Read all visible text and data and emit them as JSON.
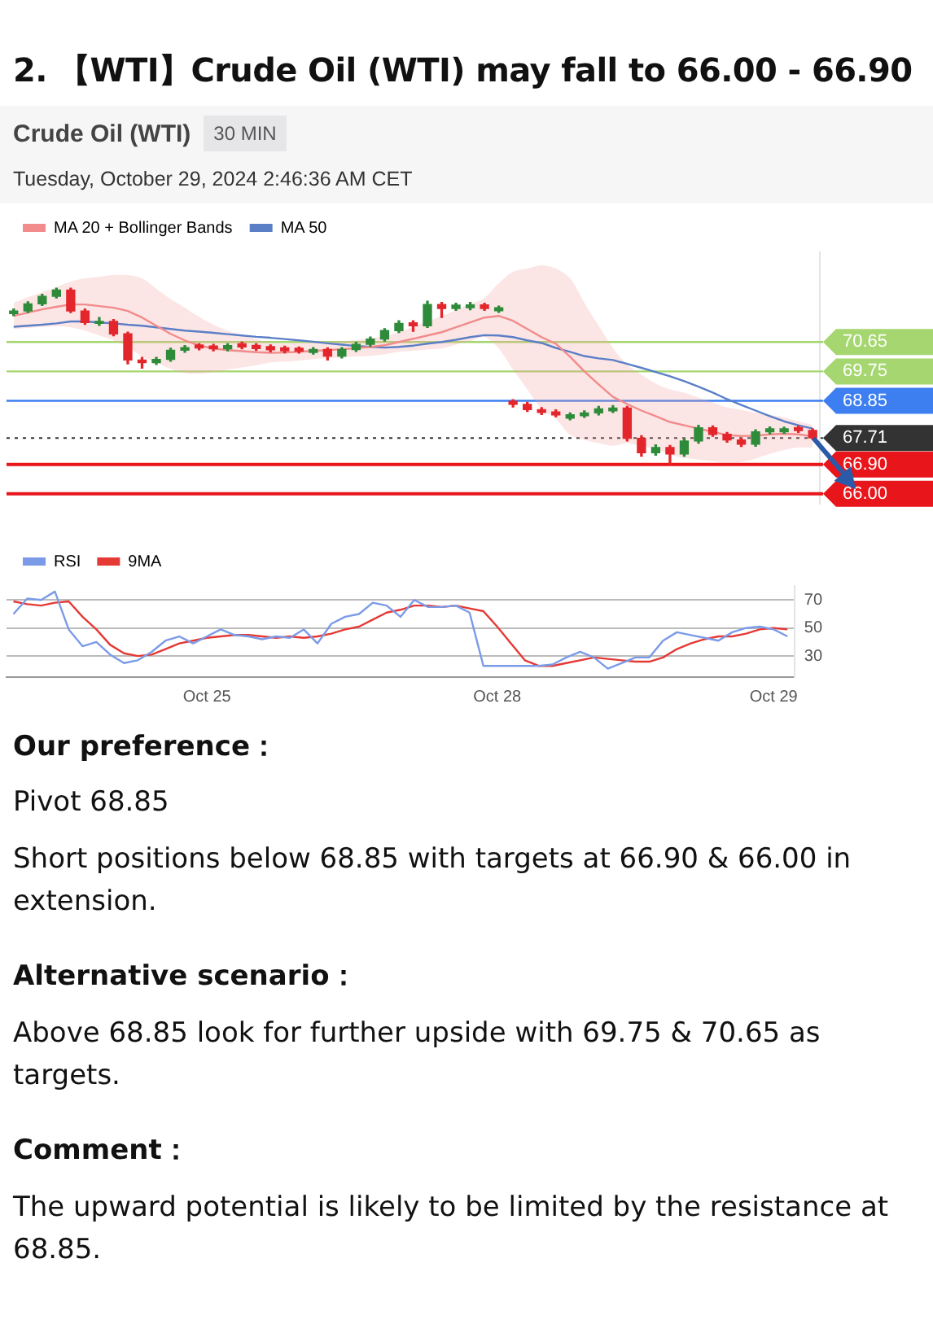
{
  "chart_data": [
    {
      "type": "candlestick",
      "title": "2. 【WTI】Crude Oil (WTI) may fall to 66.00 - 66.90",
      "subtitle": "Crude Oil (WTI)",
      "annotations": [
        "30 MIN",
        "Tuesday, October 29, 2024 2:46:36 AM CET"
      ],
      "categories": [
        null,
        null,
        null,
        null,
        null,
        null,
        null,
        null,
        null,
        null,
        null,
        null,
        null,
        null,
        null,
        null,
        null,
        null,
        null,
        null,
        null,
        null,
        null,
        null,
        null,
        null,
        null,
        null,
        null,
        null,
        null,
        null,
        null,
        null,
        null,
        null,
        null,
        null,
        null,
        null,
        null,
        null,
        null,
        null,
        null,
        null,
        null,
        null,
        null,
        null,
        null,
        null,
        null,
        null,
        null,
        null,
        null
      ],
      "ohlc": [
        [
          71.52,
          71.66,
          71.46,
          71.6
        ],
        [
          71.6,
          71.88,
          71.55,
          71.82
        ],
        [
          71.82,
          72.11,
          71.77,
          72.05
        ],
        [
          72.05,
          72.3,
          72.0,
          72.24
        ],
        [
          72.24,
          72.3,
          71.55,
          71.6
        ],
        [
          71.6,
          71.66,
          71.19,
          71.25
        ],
        [
          71.22,
          71.4,
          71.16,
          71.28
        ],
        [
          71.28,
          71.34,
          70.84,
          70.9
        ],
        [
          70.9,
          70.95,
          69.98,
          70.1
        ],
        [
          70.1,
          70.18,
          69.85,
          70.02
        ],
        [
          70.02,
          70.18,
          69.96,
          70.12
        ],
        [
          70.12,
          70.46,
          70.06,
          70.4
        ],
        [
          70.4,
          70.54,
          70.34,
          70.48
        ],
        [
          70.56,
          70.6,
          70.41,
          70.47
        ],
        [
          70.53,
          70.58,
          70.38,
          70.44
        ],
        [
          70.44,
          70.6,
          70.38,
          70.54
        ],
        [
          70.6,
          70.65,
          70.44,
          70.5
        ],
        [
          70.55,
          70.6,
          70.39,
          70.45
        ],
        [
          70.51,
          70.56,
          70.35,
          70.41
        ],
        [
          70.47,
          70.52,
          70.32,
          70.38
        ],
        [
          70.46,
          70.5,
          70.31,
          70.37
        ],
        [
          70.33,
          70.48,
          70.28,
          70.42
        ],
        [
          70.42,
          70.47,
          70.1,
          70.22
        ],
        [
          70.22,
          70.48,
          70.16,
          70.42
        ],
        [
          70.42,
          70.64,
          70.36,
          70.58
        ],
        [
          70.58,
          70.8,
          70.52,
          70.74
        ],
        [
          70.74,
          71.06,
          70.68,
          71.0
        ],
        [
          71.0,
          71.3,
          70.94,
          71.22
        ],
        [
          71.24,
          71.3,
          70.98,
          71.15
        ],
        [
          71.15,
          71.9,
          71.1,
          71.8
        ],
        [
          71.8,
          71.86,
          71.4,
          71.68
        ],
        [
          71.68,
          71.84,
          71.62,
          71.78
        ],
        [
          71.7,
          71.86,
          71.64,
          71.79
        ],
        [
          71.79,
          71.84,
          71.62,
          71.68
        ],
        [
          71.61,
          71.75,
          71.56,
          71.7
        ],
        [
          68.83,
          68.88,
          68.66,
          68.74
        ],
        [
          68.74,
          68.8,
          68.52,
          68.58
        ],
        [
          68.58,
          68.64,
          68.43,
          68.49
        ],
        [
          68.51,
          68.57,
          68.36,
          68.42
        ],
        [
          68.32,
          68.48,
          68.27,
          68.42
        ],
        [
          68.39,
          68.54,
          68.34,
          68.48
        ],
        [
          68.48,
          68.68,
          68.42,
          68.6
        ],
        [
          68.54,
          68.7,
          68.49,
          68.63
        ],
        [
          68.63,
          68.68,
          67.62,
          67.7
        ],
        [
          67.7,
          67.78,
          67.15,
          67.26
        ],
        [
          67.26,
          67.5,
          67.18,
          67.42
        ],
        [
          67.42,
          67.48,
          66.9,
          67.22
        ],
        [
          67.22,
          67.7,
          67.15,
          67.62
        ],
        [
          67.62,
          68.1,
          67.55,
          68.02
        ],
        [
          68.02,
          68.08,
          67.76,
          67.82
        ],
        [
          67.82,
          67.88,
          67.58,
          67.65
        ],
        [
          67.65,
          67.7,
          67.45,
          67.52
        ],
        [
          67.52,
          67.96,
          67.46,
          67.9
        ],
        [
          67.9,
          68.05,
          67.84,
          67.99
        ],
        [
          67.9,
          68.04,
          67.85,
          67.99
        ],
        [
          68.03,
          68.08,
          67.88,
          67.94
        ],
        [
          67.94,
          67.99,
          67.66,
          67.71
        ]
      ],
      "series": [
        {
          "type": "line",
          "name": "MA 20 + Bollinger Bands",
          "color": "#f28b8b",
          "values": [
            71.45,
            71.55,
            71.65,
            71.73,
            71.8,
            71.8,
            71.75,
            71.7,
            71.6,
            71.4,
            71.15,
            70.9,
            70.7,
            70.55,
            70.45,
            70.4,
            70.37,
            70.34,
            70.32,
            70.33,
            70.35,
            70.38,
            70.4,
            70.43,
            70.46,
            70.5,
            70.55,
            70.65,
            70.75,
            70.85,
            70.95,
            71.1,
            71.25,
            71.4,
            71.45,
            71.3,
            71.05,
            70.8,
            70.6,
            70.2,
            69.75,
            69.35,
            68.97,
            68.75,
            68.55,
            68.38,
            68.2,
            68.1,
            68.0,
            67.9,
            67.8,
            67.77,
            67.78,
            67.82,
            67.84,
            67.82,
            67.76
          ],
          "upper": [
            71.85,
            72.02,
            72.18,
            72.33,
            72.5,
            72.6,
            72.65,
            72.7,
            72.7,
            72.6,
            72.28,
            71.97,
            71.7,
            71.42,
            71.18,
            71.0,
            70.87,
            70.74,
            70.62,
            70.61,
            70.62,
            70.63,
            70.65,
            70.68,
            70.71,
            70.77,
            70.83,
            70.95,
            71.12,
            71.28,
            71.45,
            71.63,
            71.82,
            72.0,
            72.45,
            72.8,
            72.9,
            73.0,
            72.9,
            72.6,
            71.85,
            71.15,
            70.47,
            69.95,
            69.65,
            69.38,
            69.2,
            69.1,
            68.95,
            68.8,
            68.65,
            68.57,
            68.48,
            68.42,
            68.34,
            68.22,
            68.11
          ],
          "lower": [
            71.05,
            71.08,
            71.12,
            71.13,
            71.1,
            71.0,
            70.85,
            70.7,
            70.5,
            70.2,
            70.02,
            69.83,
            69.7,
            69.68,
            69.72,
            69.8,
            69.87,
            69.94,
            70.02,
            70.05,
            70.08,
            70.13,
            70.15,
            70.18,
            70.21,
            70.23,
            70.27,
            70.35,
            70.38,
            70.42,
            70.45,
            70.57,
            70.68,
            70.8,
            70.45,
            69.8,
            69.2,
            68.6,
            68.3,
            67.8,
            67.65,
            67.55,
            67.47,
            67.55,
            67.45,
            67.38,
            67.2,
            67.1,
            67.05,
            67.0,
            66.95,
            66.97,
            67.08,
            67.22,
            67.34,
            67.42,
            67.41
          ]
        },
        {
          "type": "line",
          "name": "MA 50",
          "color": "#5b7fc7",
          "values": [
            71.12,
            71.15,
            71.18,
            71.22,
            71.28,
            71.28,
            71.25,
            71.22,
            71.18,
            71.15,
            71.1,
            71.05,
            71.0,
            70.97,
            70.93,
            70.89,
            70.85,
            70.81,
            70.78,
            70.74,
            70.7,
            70.66,
            70.61,
            70.57,
            70.53,
            70.5,
            70.48,
            70.5,
            70.54,
            70.6,
            70.65,
            70.72,
            70.8,
            70.86,
            70.85,
            70.8,
            70.7,
            70.62,
            70.47,
            70.35,
            70.22,
            70.15,
            70.1,
            69.98,
            69.86,
            69.73,
            69.6,
            69.45,
            69.28,
            69.1,
            68.9,
            68.72,
            68.55,
            68.38,
            68.22,
            68.1,
            68.0
          ]
        }
      ],
      "ylim": [
        65.7,
        73.4
      ],
      "yticks": [
        70.65,
        69.75,
        68.85,
        67.71,
        {
          "value": 66.9,
          "label": "66.90"
        },
        {
          "value": 66,
          "label": "66.00"
        }
      ],
      "ref_lines": [
        {
          "axis": "y",
          "value": 70.65,
          "color": "#a5d66f"
        },
        {
          "axis": "y",
          "value": 69.75,
          "color": "#a5d66f"
        },
        {
          "axis": "y",
          "value": 68.85,
          "color": "#3d7ef0"
        },
        {
          "axis": "y",
          "value": 67.71,
          "color": "#333333",
          "line_style": "dotted"
        },
        {
          "axis": "y",
          "value": 66.9,
          "color": "#e8151b"
        },
        {
          "axis": "y",
          "value": 66,
          "color": "#e8151b"
        }
      ],
      "legend": "top left",
      "tick_labels": "y"
    },
    {
      "type": "line",
      "categories": [
        null,
        null,
        null,
        null,
        null,
        null,
        null,
        null,
        null,
        null,
        null,
        null,
        null,
        null,
        "Oct 25",
        null,
        null,
        null,
        null,
        null,
        null,
        null,
        null,
        null,
        null,
        null,
        null,
        null,
        null,
        null,
        null,
        null,
        null,
        null,
        null,
        "Oct 28",
        null,
        null,
        null,
        null,
        null,
        null,
        null,
        null,
        null,
        null,
        null,
        null,
        null,
        null,
        null,
        null,
        null,
        null,
        null,
        "Oct 29",
        null
      ],
      "series": [
        {
          "name": "RSI",
          "color": "#7b9be8",
          "values": [
            60,
            71,
            70,
            76,
            49,
            37,
            40,
            31,
            25,
            27,
            33,
            41,
            44,
            39,
            44,
            49,
            45,
            44,
            42,
            44,
            43,
            49,
            39,
            53,
            58,
            60,
            68,
            66,
            58,
            70,
            65,
            65,
            66,
            61,
            23,
            23,
            23,
            23,
            23,
            24,
            29,
            33,
            29,
            21,
            25,
            29,
            29,
            41,
            47,
            45,
            43,
            41,
            47,
            50,
            51,
            49,
            44
          ]
        },
        {
          "name": "9MA",
          "color": "#e53935",
          "values": [
            69,
            67,
            66,
            68,
            69,
            58,
            49,
            38,
            32,
            30,
            31,
            35,
            39,
            41,
            43,
            44,
            45,
            45,
            44,
            43,
            44,
            43,
            44,
            46,
            49,
            51,
            56,
            61,
            63,
            66,
            66,
            65,
            66,
            64,
            62,
            51,
            39,
            27,
            23,
            23,
            25,
            27,
            29,
            28,
            27,
            26,
            26,
            29,
            35,
            39,
            42,
            44,
            44,
            46,
            49,
            50,
            49
          ]
        }
      ],
      "ylim": [
        15,
        80
      ],
      "yticks": [
        30,
        50,
        70
      ],
      "grid": "y",
      "legend": "top left",
      "annotations": [
        "Our preference：",
        "Pivot 68.85",
        "Short positions below 68.85 with targets at 66.90 & 66.00 in extension.",
        "Alternative scenario：",
        "Above 68.85 look for further upside with 69.75 & 70.65 as targets.",
        "Comment：",
        "The upward potential is likely to be limited by the resistance at 68.85."
      ]
    }
  ]
}
